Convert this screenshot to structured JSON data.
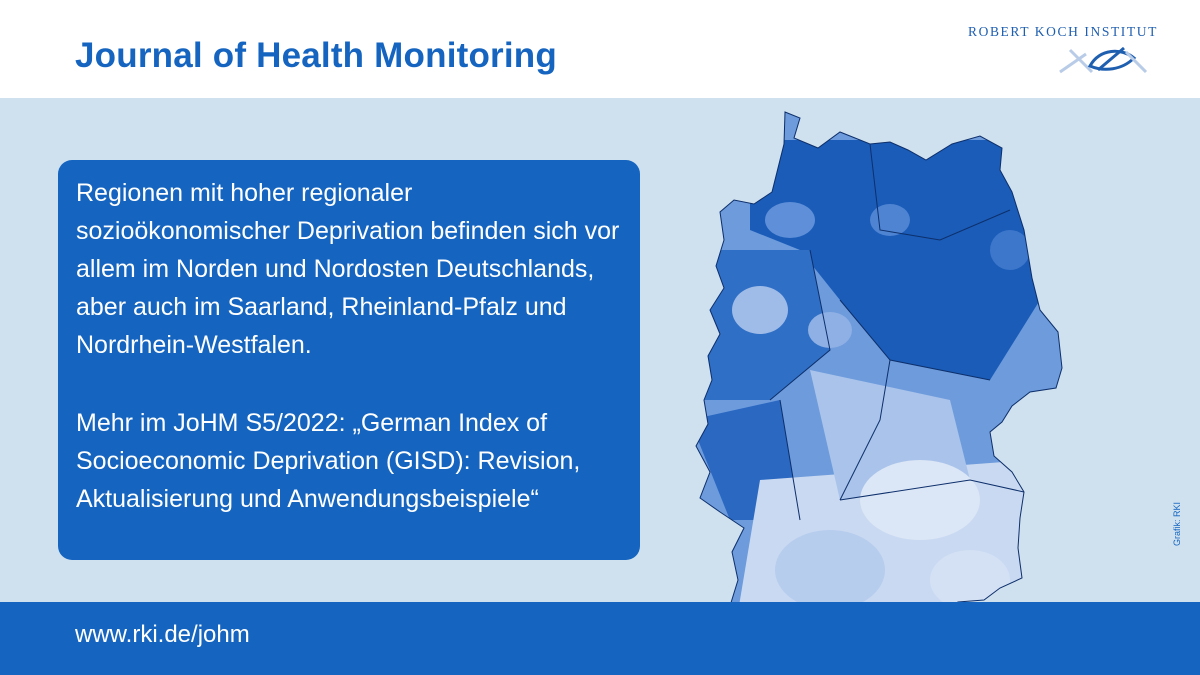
{
  "header": {
    "title": "Journal of Health Monitoring",
    "logo_text": "ROBERT KOCH INSTITUT"
  },
  "main": {
    "paragraph1": "Regionen mit hoher regionaler sozioökonomischer Deprivation befinden sich vor allem im Norden und Nordosten Deutschlands, aber auch im Saarland, Rheinland-Pfalz und Nordrhein-Westfalen.",
    "paragraph2": "Mehr im JoHM S5/2022: „German Index of Socioeconomic Deprivation (GISD): Revision, Aktualisierung und Anwendungsbeispiele“",
    "credit": "Grafik: RKI"
  },
  "footer": {
    "url": "www.rki.de/johm"
  },
  "colors": {
    "brand_blue": "#1565c0",
    "background_light": "#cfe1ef",
    "map_dark": "#1a5cb8",
    "map_mid": "#6d9bdc",
    "map_light": "#c9d9f1"
  }
}
